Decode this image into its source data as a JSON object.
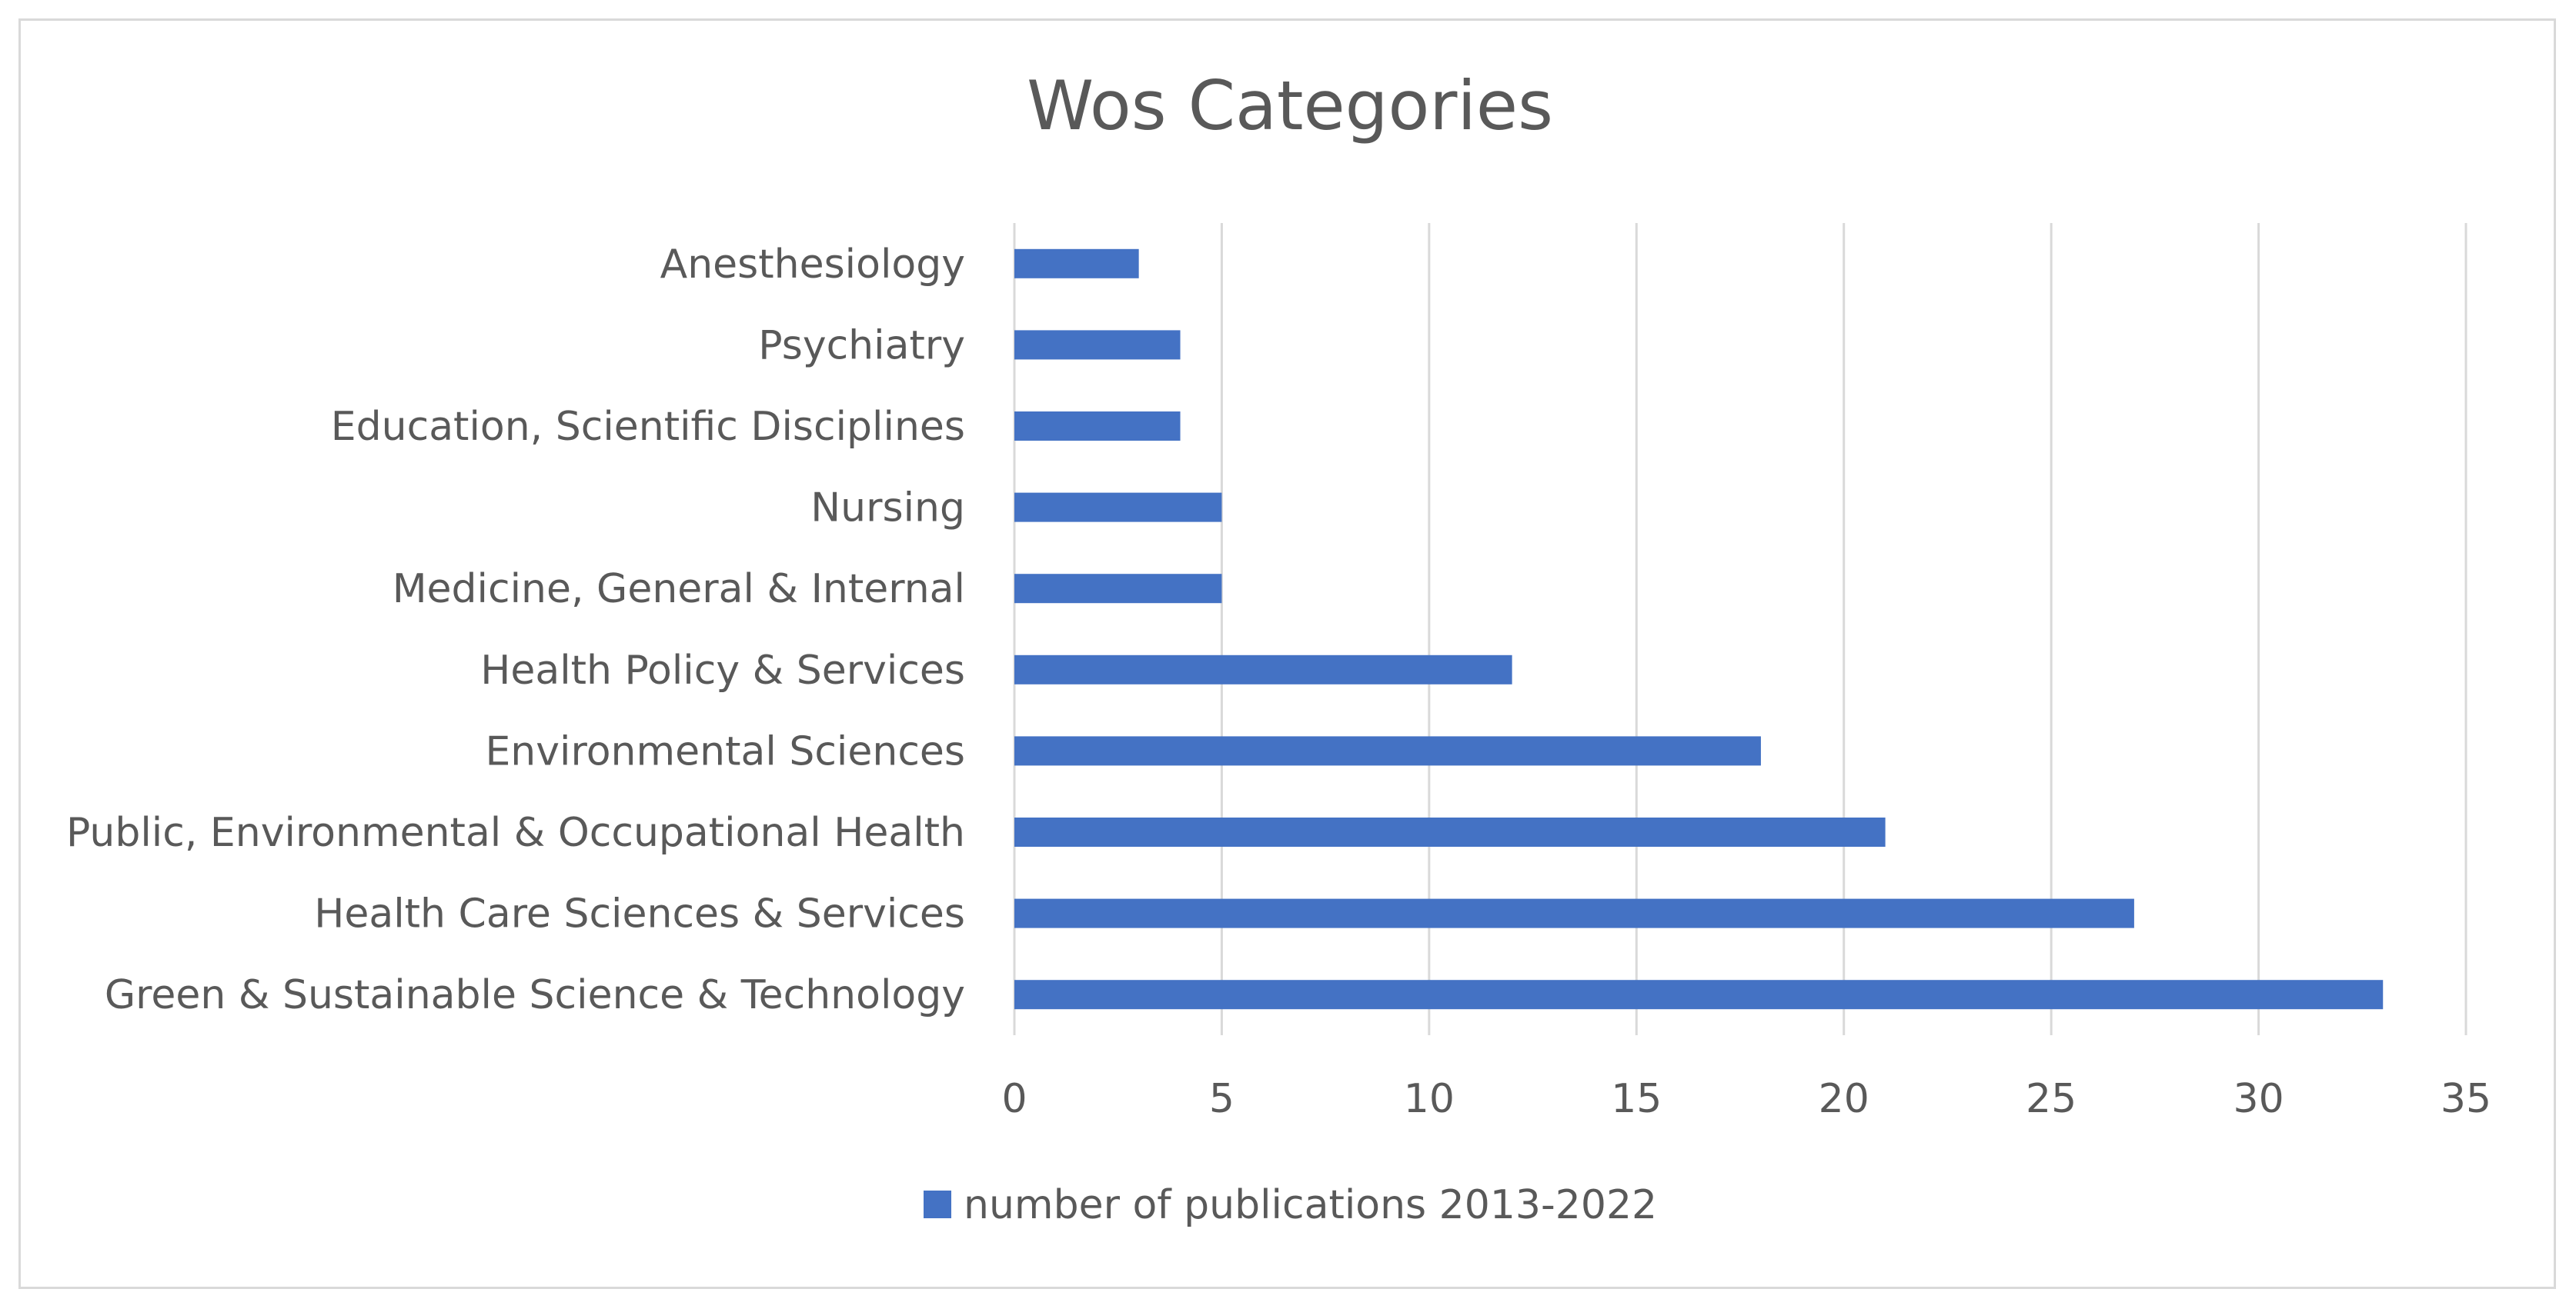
{
  "chart_data": {
    "type": "bar",
    "orientation": "horizontal",
    "title": "Wos Categories",
    "xlabel": "",
    "ylabel": "",
    "categories": [
      "Green & Sustainable Science & Technology",
      "Health Care Sciences & Services",
      "Public, Environmental & Occupational Health",
      "Environmental Sciences",
      "Health Policy & Services",
      "Medicine, General & Internal",
      "Nursing",
      "Education, Scientific Disciplines",
      "Psychiatry",
      "Anesthesiology"
    ],
    "series": [
      {
        "name": "number of publications 2013-2022",
        "values": [
          33,
          27,
          21,
          18,
          12,
          5,
          5,
          4,
          4,
          3
        ],
        "color": "#4472c4"
      }
    ],
    "xlim": [
      0,
      35
    ],
    "xticks": [
      0,
      5,
      10,
      15,
      20,
      25,
      30,
      35
    ],
    "grid": "vertical",
    "legend": "bottom"
  }
}
